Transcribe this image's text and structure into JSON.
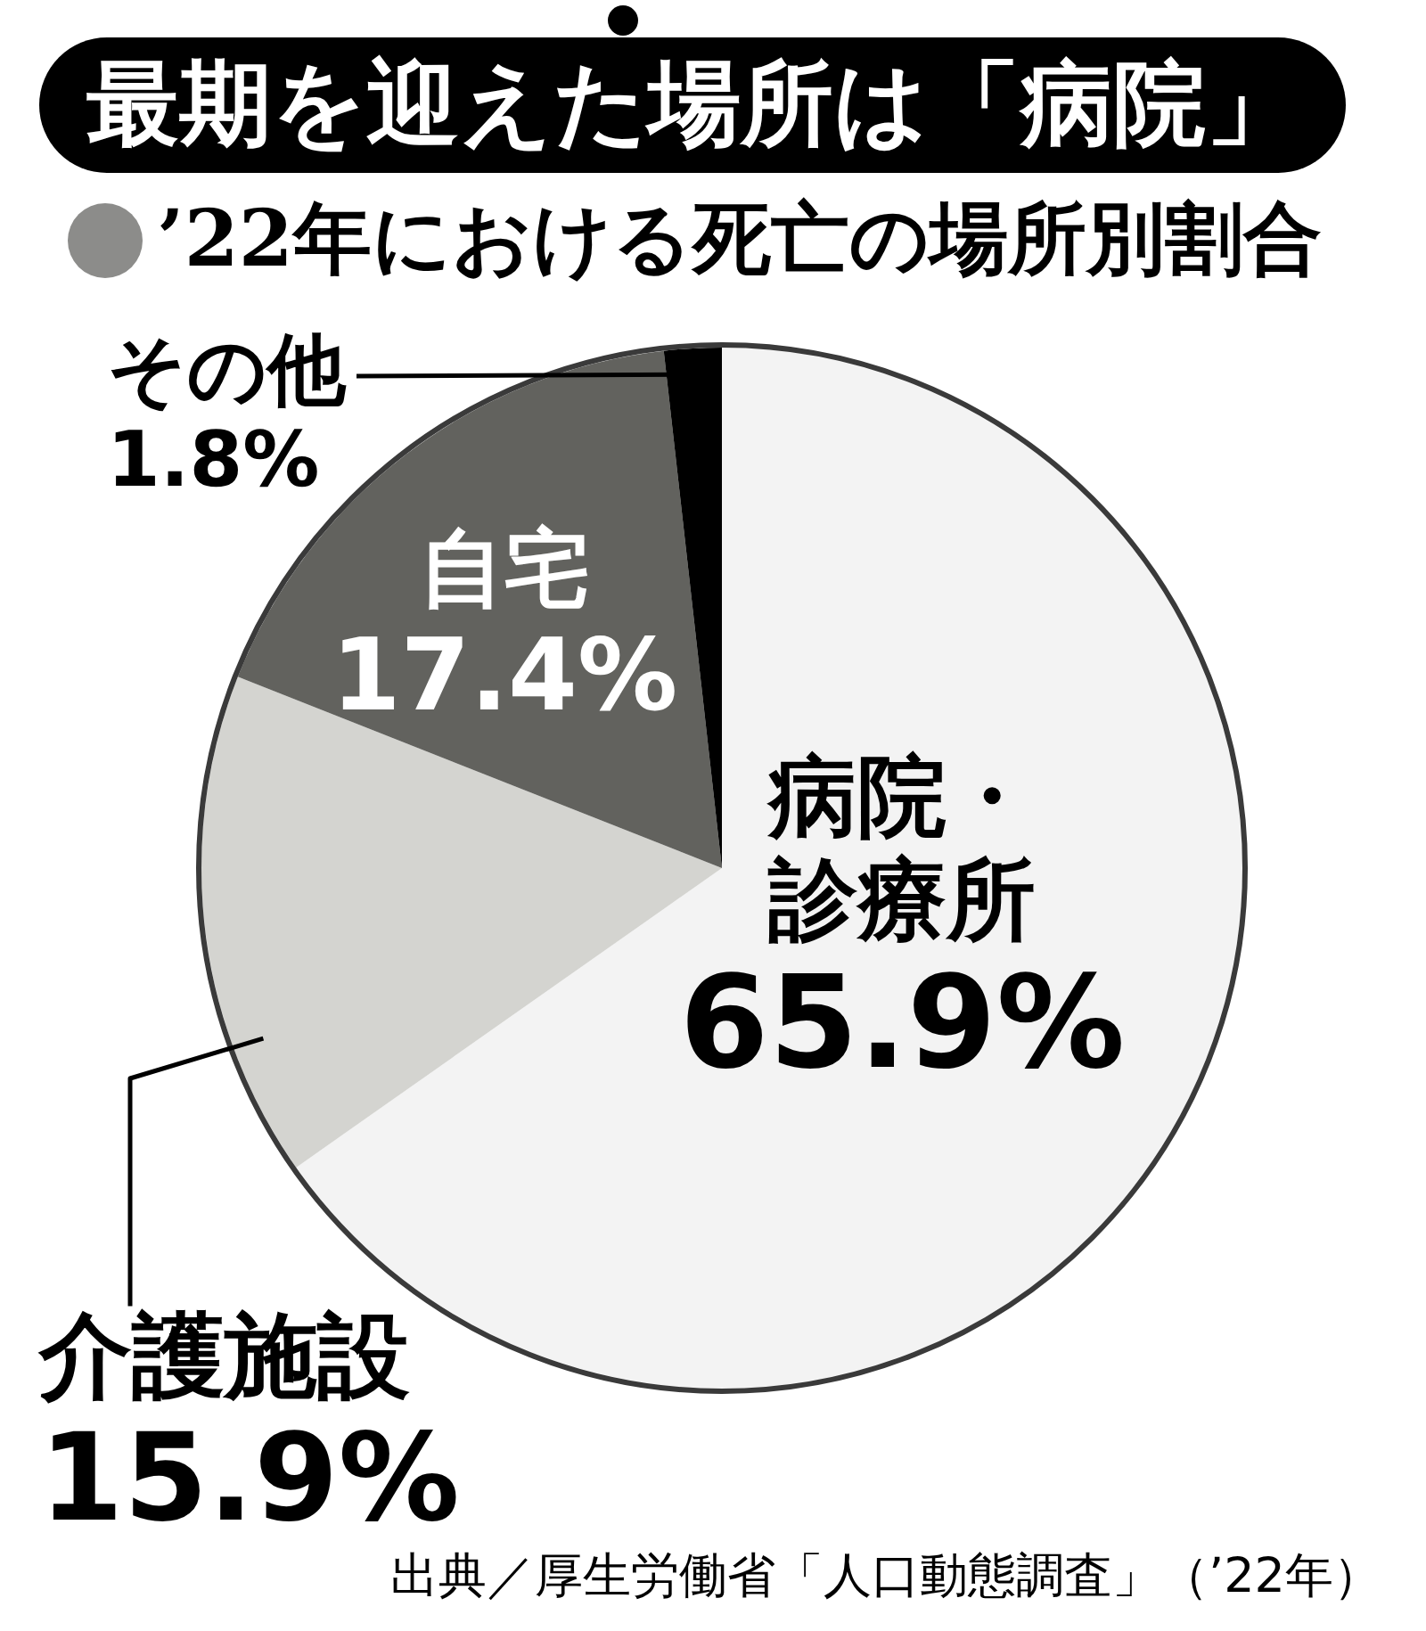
{
  "chart_data": {
    "type": "pie",
    "title": "最期を迎えた場所は「病院」",
    "subtitle": "’22年における死亡の場所別割合",
    "categories": [
      "病院・診療所",
      "介護施設",
      "自宅",
      "その他"
    ],
    "values": [
      65.9,
      15.9,
      17.4,
      1.8
    ],
    "colors": [
      "#f3f3f3",
      "#d4d4d0",
      "#62625e",
      "#000000"
    ],
    "value_labels": [
      "65.9%",
      "15.9%",
      "17.4%",
      "1.8%"
    ],
    "annotations": [
      "出典／厚生労働省「人口動態調査」（’22年）"
    ]
  }
}
